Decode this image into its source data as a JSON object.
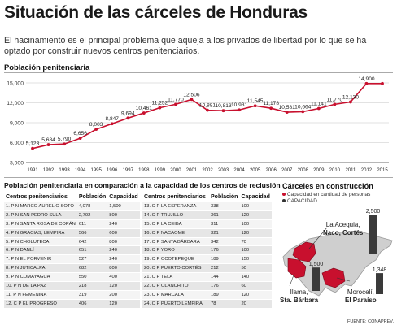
{
  "title": "Situación de las cárceles de Honduras",
  "intro": "El hacinamiento es el principal problema que aqueja a los privados de libertad por lo que se ha optado por construir nuevos centros penitenciarios.",
  "line_section_title": "Población penitenciaria",
  "chart_data": {
    "type": "line",
    "title": "Población penitenciaria",
    "x": [
      "1991",
      "1992",
      "1993",
      "1994",
      "1995",
      "1996",
      "1997",
      "1998",
      "1999",
      "2000",
      "2001",
      "2002",
      "2003",
      "2004",
      "2005",
      "2006",
      "2007",
      "2008",
      "2009",
      "2010",
      "2011",
      "2012",
      "2015"
    ],
    "series": [
      {
        "values": [
          5123,
          5684,
          5790,
          6656,
          8003,
          8847,
          9694,
          10461,
          11252,
          11770,
          12506,
          10881,
          10813,
          10931,
          11545,
          11178,
          10581,
          10664,
          11141,
          11770,
          12130,
          14900,
          14900
        ]
      }
    ],
    "value_labels": [
      "5,123",
      "5,684",
      "5,790",
      "6,656",
      "8,003",
      "8,847",
      "9,694",
      "10,461",
      "11,252",
      "11,770",
      "12,506",
      "10,881",
      "10,813",
      "10,931",
      "11,545",
      "11,178",
      "10,581",
      "10,664",
      "11,141",
      "11,770",
      "12,130",
      "14,900"
    ],
    "yticks": [
      "3,000",
      "6,000",
      "9,000",
      "12,000",
      "15,000"
    ],
    "ytick_values": [
      3000,
      6000,
      9000,
      12000,
      15000
    ],
    "ylim": [
      3000,
      15000
    ],
    "color": "#c8102e",
    "grid": true
  },
  "table_section_title": "Población penitenciaria en comparación a la capacidad de los centros de reclusión",
  "table_left": {
    "headers": [
      "Centros penitenciarios",
      "Población",
      "Capacidad"
    ],
    "rows": [
      [
        "1. P N MARCO AURELIO SOTO",
        "4,078",
        "1,500"
      ],
      [
        "2. P N SAN PEDRO SULA",
        "2,702",
        "800"
      ],
      [
        "3. P N SANTA ROSA DE COPÁN",
        "611",
        "240"
      ],
      [
        "4. P N GRACIAS, LEMPIRA",
        "566",
        "600"
      ],
      [
        "5. P N CHOLUTECA",
        "642",
        "800"
      ],
      [
        "6. P N DANLÍ",
        "651",
        "240"
      ],
      [
        "7. P N EL PORVENIR",
        "527",
        "240"
      ],
      [
        "8. P N JUTICALPA",
        "682",
        "800"
      ],
      [
        "9.  P N  COMAYAGUA",
        "550",
        "400"
      ],
      [
        "10. P N DE LA PAZ",
        "218",
        "120"
      ],
      [
        "11. P N FEMENINA",
        "319",
        "200"
      ],
      [
        "12. C P EL PROGRESO",
        "406",
        "120"
      ]
    ]
  },
  "table_right": {
    "headers": [
      "Centros penitenciarios",
      "Población",
      "Capacidad"
    ],
    "rows": [
      [
        "13. C P LA ESPERANZA",
        "338",
        "100"
      ],
      [
        "14. C P TRUJILLO",
        "361",
        "120"
      ],
      [
        "15. C P LA CEIBA",
        "311",
        "100"
      ],
      [
        "16. C P NACAOME",
        "321",
        "120"
      ],
      [
        "17. C P SANTA BÁRBARA",
        "342",
        "70"
      ],
      [
        "18. C P YORO",
        "176",
        "100"
      ],
      [
        "19. C P OCOTEPEQUE",
        "189",
        "150"
      ],
      [
        "20. C P PUERTO CORTÉS",
        "212",
        "50"
      ],
      [
        "21. C P TELA",
        "144",
        "140"
      ],
      [
        "22. C P OLANCHITO",
        "176",
        "60"
      ],
      [
        "23. C P MARCALA",
        "189",
        "120"
      ],
      [
        "24. C P PUERTO LEMPIRA",
        "78",
        "20"
      ]
    ]
  },
  "map_section_title": "Cárceles en construcción",
  "map_legend": {
    "capacity_note": "Capacidad en cantidad de personas",
    "capacity": "CAPACIDAD"
  },
  "map_bars": [
    {
      "value": 2500,
      "label": "2,500"
    },
    {
      "value": 1500,
      "label": "1,500"
    },
    {
      "value": 1348,
      "label": "1,348"
    }
  ],
  "map_places": [
    {
      "line1": "La Acequia,",
      "line2": "Naco, Cortés"
    },
    {
      "line1": "Ilama,",
      "line2": "Sta. Bárbara"
    },
    {
      "line1": "Morocelí,",
      "line2": "El Paraíso"
    }
  ],
  "source": "FUENTE: CONAPREV.",
  "colors": {
    "accent": "#c8102e",
    "map_land": "#d0d0d0",
    "bar": "#3a3a3a"
  }
}
